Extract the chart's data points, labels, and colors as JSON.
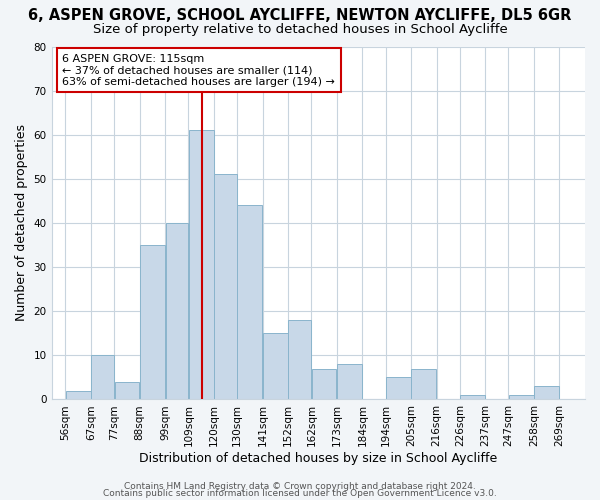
{
  "title": "6, ASPEN GROVE, SCHOOL AYCLIFFE, NEWTON AYCLIFFE, DL5 6GR",
  "subtitle": "Size of property relative to detached houses in School Aycliffe",
  "xlabel": "Distribution of detached houses by size in School Aycliffe",
  "ylabel": "Number of detached properties",
  "bar_left_edges": [
    56,
    67,
    77,
    88,
    99,
    109,
    120,
    130,
    141,
    152,
    162,
    173,
    184,
    194,
    205,
    216,
    226,
    237,
    247,
    258
  ],
  "bar_widths": [
    11,
    10,
    11,
    11,
    10,
    11,
    10,
    11,
    11,
    10,
    11,
    11,
    10,
    11,
    11,
    10,
    11,
    10,
    11,
    11
  ],
  "bar_heights": [
    2,
    10,
    4,
    35,
    40,
    61,
    51,
    44,
    15,
    18,
    7,
    8,
    0,
    5,
    7,
    0,
    1,
    0,
    1,
    3
  ],
  "bar_color": "#c8d8e8",
  "bar_edge_color": "#8ab4cc",
  "vline_x": 115,
  "vline_color": "#cc0000",
  "ylim": [
    0,
    80
  ],
  "yticks": [
    0,
    10,
    20,
    30,
    40,
    50,
    60,
    70,
    80
  ],
  "xtick_labels": [
    "56sqm",
    "67sqm",
    "77sqm",
    "88sqm",
    "99sqm",
    "109sqm",
    "120sqm",
    "130sqm",
    "141sqm",
    "152sqm",
    "162sqm",
    "173sqm",
    "184sqm",
    "194sqm",
    "205sqm",
    "216sqm",
    "226sqm",
    "237sqm",
    "247sqm",
    "258sqm",
    "269sqm"
  ],
  "xtick_positions": [
    56,
    67,
    77,
    88,
    99,
    109,
    120,
    130,
    141,
    152,
    162,
    173,
    184,
    194,
    205,
    216,
    226,
    237,
    247,
    258,
    269
  ],
  "annotation_title": "6 ASPEN GROVE: 115sqm",
  "annotation_line1": "← 37% of detached houses are smaller (114)",
  "annotation_line2": "63% of semi-detached houses are larger (194) →",
  "footer1": "Contains HM Land Registry data © Crown copyright and database right 2024.",
  "footer2": "Contains public sector information licensed under the Open Government Licence v3.0.",
  "bg_color": "#f2f5f8",
  "plot_bg_color": "#ffffff",
  "grid_color": "#c8d4de",
  "title_fontsize": 10.5,
  "subtitle_fontsize": 9.5,
  "axis_label_fontsize": 9,
  "tick_fontsize": 7.5,
  "footer_fontsize": 6.5,
  "ann_fontsize": 8.0
}
